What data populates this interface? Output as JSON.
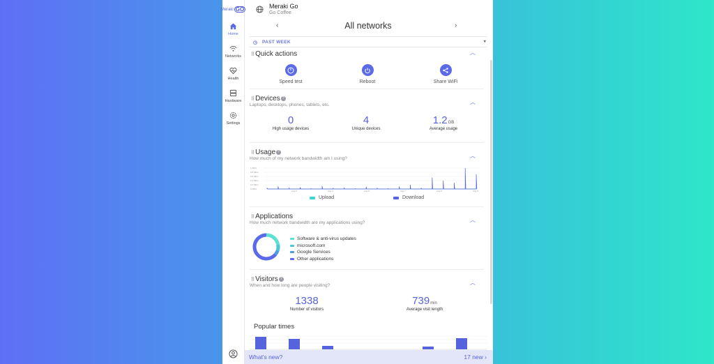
{
  "sidebar": {
    "logo_text": "Meraki",
    "logo_go": "GO",
    "items": [
      {
        "label": "Home",
        "active": true
      },
      {
        "label": "Networks"
      },
      {
        "label": "Health"
      },
      {
        "label": "Hardware"
      },
      {
        "label": "Settings"
      }
    ]
  },
  "header": {
    "org_name": "Meraki Go",
    "org_sub": "Go Coffee",
    "title": "All networks",
    "prev": "‹",
    "next": "›"
  },
  "period": {
    "label": "PAST WEEK"
  },
  "quick_actions": {
    "title": "Quick actions",
    "items": [
      {
        "label": "Speed test",
        "icon": "speedometer-icon"
      },
      {
        "label": "Reboot",
        "icon": "power-icon"
      },
      {
        "label": "Share WiFi",
        "icon": "share-icon"
      }
    ]
  },
  "devices": {
    "title": "Devices",
    "subtitle": "Laptops, desktops, phones, tablets, etc.",
    "stats": [
      {
        "value": "0",
        "unit": "",
        "label": "High usage devices"
      },
      {
        "value": "4",
        "unit": "",
        "label": "Unique devices"
      },
      {
        "value": "1.2",
        "unit": "GB",
        "label": "Average usage"
      }
    ]
  },
  "usage": {
    "title": "Usage",
    "subtitle": "How much of my network bandwidth am I using?",
    "legend": [
      {
        "label": "Upload",
        "color": "#3fd8d0"
      },
      {
        "label": "Download",
        "color": "#5563dd"
      }
    ]
  },
  "chart_data": {
    "type": "line",
    "title": "",
    "xlabel": "",
    "ylabel": "",
    "y_ticks": [
      "1 Mb/s",
      "0.8 Mb/s",
      "0.6 Mb/s",
      "0.4 Mb/s",
      "0.2 Mb/s",
      "0 Mb/s"
    ],
    "x_ticks": [
      "Aug 2",
      "Aug 4",
      "Aug 5",
      "Aug 7",
      "Aug 8",
      "Aug 9"
    ],
    "ylim": [
      0,
      1
    ],
    "series": [
      {
        "name": "Upload",
        "color": "#3fd8d0",
        "values": [
          0.01,
          0.01,
          0.01,
          0.01,
          0.01,
          0.01,
          0.01,
          0.01,
          0.01,
          0.01,
          0.01,
          0.01,
          0.01,
          0.01,
          0.01,
          0.01,
          0.01,
          0.01,
          0.01,
          0.01
        ]
      },
      {
        "name": "Download",
        "color": "#5563dd",
        "values": [
          0.05,
          0.12,
          0.04,
          0.08,
          0.02,
          0.15,
          0.03,
          0.06,
          0.02,
          0.1,
          0.04,
          0.02,
          0.12,
          0.2,
          0.05,
          0.55,
          0.4,
          0.3,
          1.0,
          0.7
        ]
      }
    ]
  },
  "applications": {
    "title": "Applications",
    "subtitle": "How much network bandwidth are my applications using?",
    "items": [
      {
        "label": "Software & anti-virus updates",
        "color": "#5ee0d0",
        "share": 0.22
      },
      {
        "label": "microsoft.com",
        "color": "#47c6dc",
        "share": 0.08
      },
      {
        "label": "Google Services",
        "color": "#4a9ee0",
        "share": 0.06
      },
      {
        "label": "Other applications",
        "color": "#5b6ae8",
        "share": 0.64
      }
    ]
  },
  "visitors": {
    "title": "Visitors",
    "subtitle": "When and how long are people visiting?",
    "stats": [
      {
        "value": "1338",
        "unit": "",
        "label": "Number of visitors"
      },
      {
        "value": "739",
        "unit": "min",
        "label": "Average visit length"
      }
    ],
    "popular_title": "Popular times",
    "popular_values": [
      0.9,
      0,
      0.75,
      0,
      0.25,
      0,
      0,
      0,
      0,
      0,
      0.2,
      0,
      0.8
    ]
  },
  "footer": {
    "whats_new": "What's new?",
    "count": "17 new ›"
  }
}
